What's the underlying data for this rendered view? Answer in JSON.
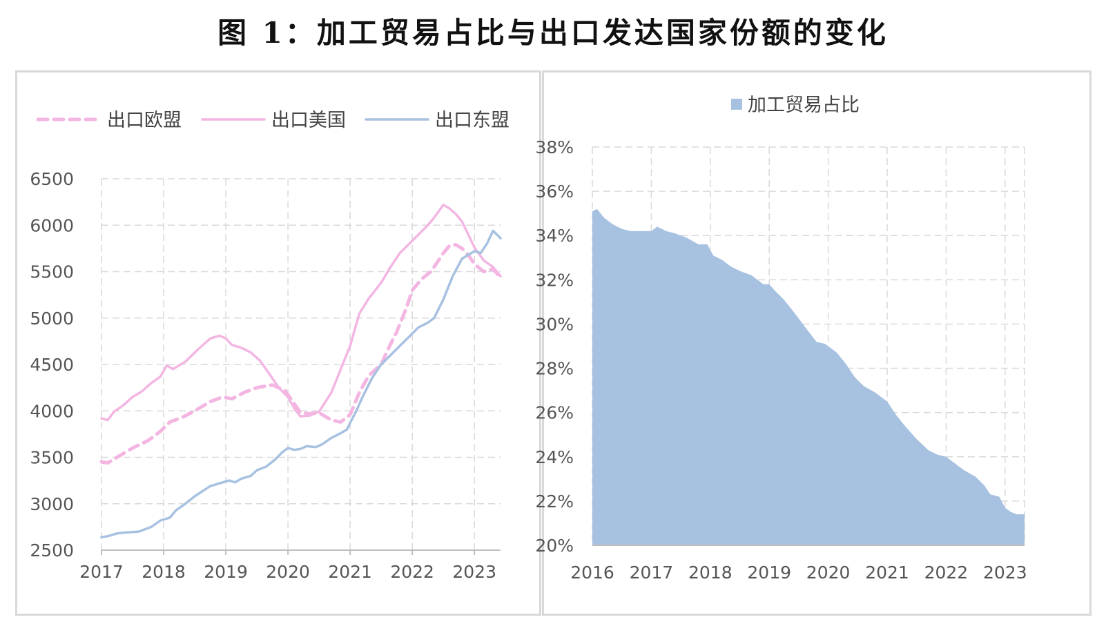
{
  "figure_title": "图 1：加工贸易占比与出口发达国家份额的变化",
  "colors": {
    "eu": "#f3b6e3",
    "us": "#f3b6e3",
    "asean": "#a7c1e1",
    "area": "#a7c1e1",
    "grid": "#d9d9d9",
    "axis": "#bfbfbf"
  },
  "chart_data": [
    {
      "type": "line",
      "title": "",
      "xlabel": "",
      "ylabel": "",
      "x_ticks": [
        "2017",
        "2018",
        "2019",
        "2020",
        "2021",
        "2022",
        "2023"
      ],
      "y_ticks": [
        "6500",
        "6000",
        "5500",
        "5000",
        "4500",
        "4000",
        "3500",
        "3000",
        "2500"
      ],
      "xlim": [
        2017.0,
        2023.42
      ],
      "ylim": [
        2500,
        6500
      ],
      "grid": true,
      "legend_position": "top",
      "series": [
        {
          "name": "出口欧盟",
          "style": "dashed",
          "x": [
            2017.0,
            2017.1,
            2017.25,
            2017.5,
            2017.75,
            2017.95,
            2018.1,
            2018.3,
            2018.5,
            2018.75,
            2018.95,
            2019.1,
            2019.3,
            2019.5,
            2019.75,
            2019.95,
            2020.1,
            2020.2,
            2020.35,
            2020.5,
            2020.7,
            2020.85,
            2021.0,
            2021.15,
            2021.3,
            2021.5,
            2021.6,
            2021.75,
            2021.9,
            2022.0,
            2022.15,
            2022.3,
            2022.4,
            2022.5,
            2022.6,
            2022.7,
            2022.8,
            2022.9,
            2023.0,
            2023.15,
            2023.3,
            2023.4
          ],
          "y": [
            3450,
            3440,
            3500,
            3600,
            3680,
            3780,
            3880,
            3930,
            4000,
            4100,
            4150,
            4130,
            4200,
            4250,
            4280,
            4220,
            4080,
            3980,
            3970,
            3980,
            3900,
            3880,
            3960,
            4200,
            4380,
            4500,
            4650,
            4850,
            5100,
            5300,
            5420,
            5500,
            5600,
            5700,
            5780,
            5790,
            5750,
            5680,
            5580,
            5500,
            5530,
            5450
          ]
        },
        {
          "name": "出口美国",
          "style": "solid",
          "x": [
            2017.0,
            2017.1,
            2017.2,
            2017.35,
            2017.5,
            2017.65,
            2017.8,
            2017.95,
            2018.05,
            2018.15,
            2018.35,
            2018.55,
            2018.75,
            2018.9,
            2019.0,
            2019.1,
            2019.25,
            2019.4,
            2019.55,
            2019.7,
            2019.85,
            2020.0,
            2020.1,
            2020.2,
            2020.35,
            2020.5,
            2020.7,
            2020.85,
            2021.0,
            2021.15,
            2021.3,
            2021.5,
            2021.65,
            2021.8,
            2021.95,
            2022.1,
            2022.25,
            2022.35,
            2022.5,
            2022.6,
            2022.7,
            2022.8,
            2022.9,
            2023.0,
            2023.15,
            2023.3,
            2023.42
          ],
          "y": [
            3920,
            3900,
            3990,
            4060,
            4150,
            4210,
            4300,
            4370,
            4490,
            4450,
            4530,
            4660,
            4780,
            4810,
            4780,
            4710,
            4680,
            4630,
            4540,
            4400,
            4250,
            4150,
            4030,
            3940,
            3950,
            3990,
            4200,
            4450,
            4700,
            5050,
            5210,
            5380,
            5550,
            5700,
            5800,
            5900,
            6000,
            6080,
            6220,
            6180,
            6120,
            6040,
            5900,
            5760,
            5620,
            5550,
            5450
          ]
        },
        {
          "name": "出口东盟",
          "style": "solid",
          "x": [
            2017.0,
            2017.1,
            2017.25,
            2017.4,
            2017.6,
            2017.8,
            2017.95,
            2018.1,
            2018.2,
            2018.35,
            2018.5,
            2018.75,
            2018.95,
            2019.05,
            2019.15,
            2019.25,
            2019.4,
            2019.5,
            2019.65,
            2019.8,
            2019.9,
            2020.0,
            2020.1,
            2020.2,
            2020.3,
            2020.45,
            2020.55,
            2020.7,
            2020.85,
            2020.95,
            2021.0,
            2021.1,
            2021.2,
            2021.35,
            2021.5,
            2021.65,
            2021.8,
            2021.95,
            2022.1,
            2022.25,
            2022.35,
            2022.5,
            2022.65,
            2022.8,
            2022.9,
            2023.0,
            2023.1,
            2023.2,
            2023.3,
            2023.42
          ],
          "y": [
            2640,
            2650,
            2680,
            2690,
            2700,
            2750,
            2820,
            2850,
            2930,
            3000,
            3080,
            3190,
            3230,
            3250,
            3230,
            3270,
            3300,
            3360,
            3400,
            3480,
            3550,
            3600,
            3580,
            3590,
            3620,
            3610,
            3640,
            3710,
            3760,
            3800,
            3870,
            4000,
            4150,
            4350,
            4500,
            4600,
            4700,
            4800,
            4900,
            4950,
            5000,
            5200,
            5450,
            5640,
            5680,
            5720,
            5700,
            5800,
            5940,
            5860
          ]
        }
      ]
    },
    {
      "type": "area",
      "title": "",
      "xlabel": "",
      "ylabel": "",
      "x_ticks": [
        "2016",
        "2017",
        "2018",
        "2019",
        "2020",
        "2021",
        "2022",
        "2023"
      ],
      "y_ticks": [
        "38%",
        "36%",
        "34%",
        "32%",
        "30%",
        "28%",
        "26%",
        "24%",
        "22%",
        "20%"
      ],
      "xlim": [
        2016.0,
        2023.33
      ],
      "ylim": [
        20,
        38
      ],
      "grid": true,
      "legend_position": "top",
      "series": [
        {
          "name": "加工贸易占比",
          "x": [
            2016.0,
            2016.08,
            2016.2,
            2016.35,
            2016.5,
            2016.65,
            2016.8,
            2017.0,
            2017.1,
            2017.25,
            2017.4,
            2017.6,
            2017.8,
            2017.95,
            2018.05,
            2018.2,
            2018.35,
            2018.5,
            2018.7,
            2018.9,
            2019.0,
            2019.1,
            2019.25,
            2019.4,
            2019.6,
            2019.8,
            2019.95,
            2020.05,
            2020.15,
            2020.3,
            2020.45,
            2020.6,
            2020.8,
            2021.0,
            2021.15,
            2021.3,
            2021.5,
            2021.7,
            2021.85,
            2022.0,
            2022.15,
            2022.3,
            2022.5,
            2022.65,
            2022.75,
            2022.9,
            2023.0,
            2023.1,
            2023.2,
            2023.33
          ],
          "y": [
            35.1,
            35.2,
            34.8,
            34.5,
            34.3,
            34.2,
            34.2,
            34.2,
            34.4,
            34.2,
            34.1,
            33.9,
            33.6,
            33.6,
            33.1,
            32.9,
            32.6,
            32.4,
            32.2,
            31.8,
            31.8,
            31.5,
            31.1,
            30.6,
            29.9,
            29.2,
            29.1,
            28.9,
            28.7,
            28.2,
            27.6,
            27.2,
            26.9,
            26.5,
            25.9,
            25.4,
            24.8,
            24.3,
            24.1,
            24.0,
            23.7,
            23.4,
            23.1,
            22.7,
            22.3,
            22.2,
            21.7,
            21.5,
            21.4,
            21.4
          ]
        }
      ]
    }
  ]
}
